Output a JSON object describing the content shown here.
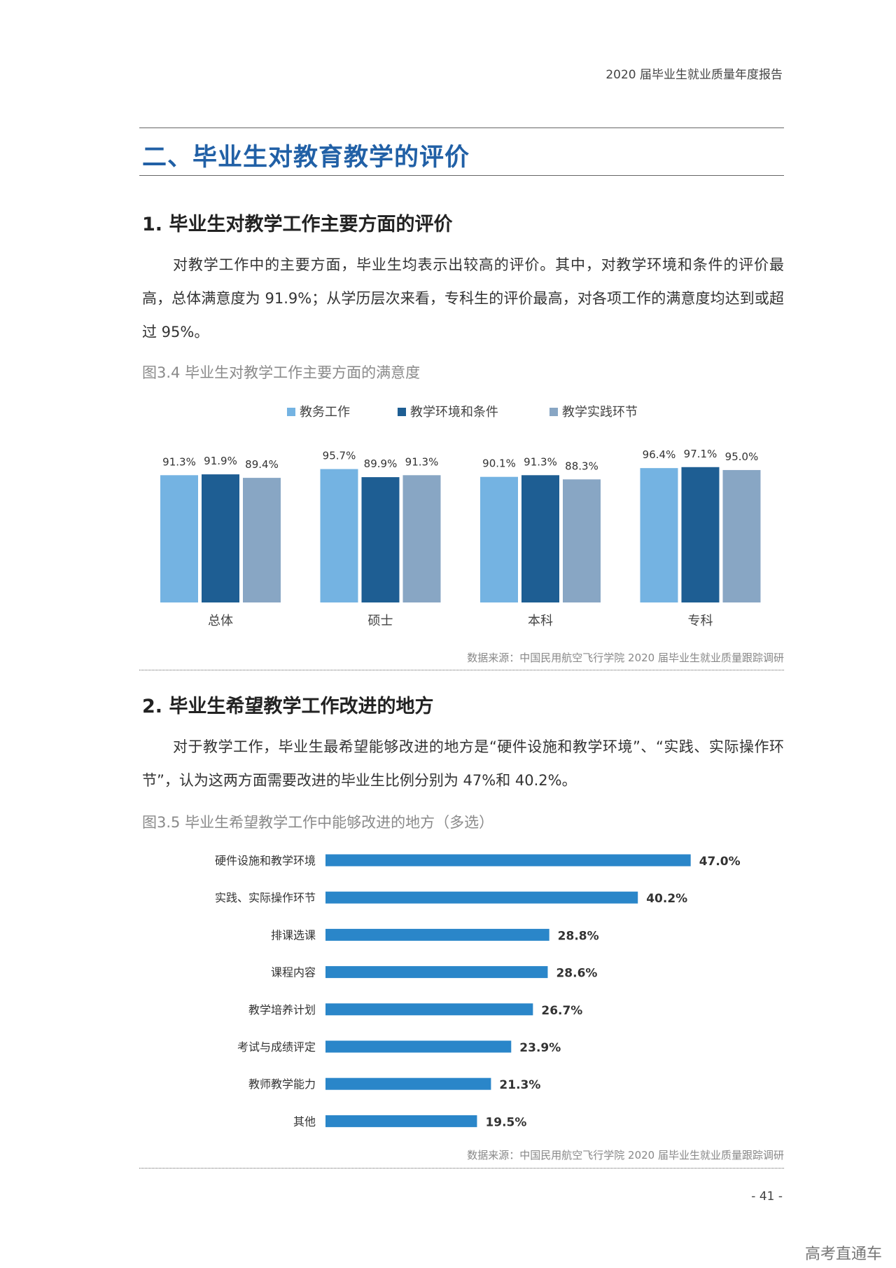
{
  "header": {
    "running_title": "2020 届毕业生就业质量年度报告"
  },
  "section": {
    "title": "二、毕业生对教育教学的评价"
  },
  "part1": {
    "heading": "1. 毕业生对教学工作主要方面的评价",
    "paragraph": "对教学工作中的主要方面，毕业生均表示出较高的评价。其中，对教学环境和条件的评价最高，总体满意度为 91.9%；从学历层次来看，专科生的评价最高，对各项工作的满意度均达到或超过 95%。",
    "figure_caption": "图3.4 毕业生对教学工作主要方面的满意度",
    "source": "数据来源：中国民用航空飞行学院 2020 届毕业生就业质量跟踪调研"
  },
  "part2": {
    "heading": "2. 毕业生希望教学工作改进的地方",
    "paragraph": "对于教学工作，毕业生最希望能够改进的地方是“硬件设施和教学环境”、“实践、实际操作环节”，认为这两方面需要改进的毕业生比例分别为 47%和 40.2%。",
    "figure_caption": "图3.5 毕业生希望教学工作中能够改进的地方（多选）",
    "source": "数据来源：中国民用航空飞行学院 2020 届毕业生就业质量跟踪调研"
  },
  "footer": {
    "page_number": "- 41 -",
    "watermark": "高考直通车"
  },
  "chart_data": [
    {
      "type": "bar",
      "categories": [
        "总体",
        "硕士",
        "本科",
        "专科"
      ],
      "series": [
        {
          "name": "教务工作",
          "values": [
            91.3,
            95.7,
            90.1,
            96.4
          ],
          "labels": [
            "91.3%",
            "95.7%",
            "90.1%",
            "96.4%"
          ],
          "color": "#74b3e2"
        },
        {
          "name": "教学环境和条件",
          "values": [
            91.9,
            89.9,
            91.3,
            97.1
          ],
          "labels": [
            "91.9%",
            "89.9%",
            "91.3%",
            "97.1%"
          ],
          "color": "#1e5e93"
        },
        {
          "name": "教学实践环节",
          "values": [
            89.4,
            91.3,
            88.3,
            95.0
          ],
          "labels": [
            "89.4%",
            "91.3%",
            "88.3%",
            "95.0%"
          ],
          "color": "#88a6c4"
        }
      ],
      "legend_position": "top",
      "grid": false
    },
    {
      "type": "bar",
      "orientation": "horizontal",
      "categories": [
        "硬件设施和教学环境",
        "实践、实际操作环节",
        "排课选课",
        "课程内容",
        "教学培养计划",
        "考试与成绩评定",
        "教师教学能力",
        "其他"
      ],
      "values": [
        47.0,
        40.2,
        28.8,
        28.6,
        26.7,
        23.9,
        21.3,
        19.5
      ],
      "labels": [
        "47.0%",
        "40.2%",
        "28.8%",
        "28.6%",
        "26.7%",
        "23.9%",
        "21.3%",
        "19.5%"
      ],
      "color": "#2a86c9",
      "grid": false
    }
  ]
}
